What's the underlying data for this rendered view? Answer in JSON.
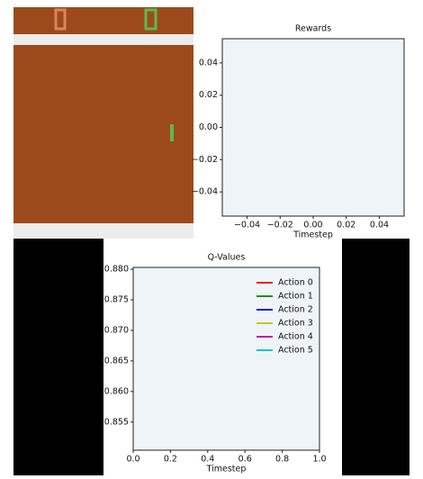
{
  "chart_data": [
    {
      "type": "line",
      "title": "Rewards",
      "x_label": "Timestep",
      "x": [],
      "values": [],
      "color": "#1f77b4",
      "xlim": [
        -0.055,
        0.055
      ],
      "xticks": [
        {
          "value": -0.04,
          "label": "−0.04"
        },
        {
          "value": -0.02,
          "label": "−0.02"
        },
        {
          "value": 0,
          "label": "0.00"
        },
        0.02,
        0.04
      ],
      "ylim": [
        -0.055,
        0.055
      ],
      "yticks": [
        {
          "value": -0.04,
          "label": "−0.04"
        },
        {
          "value": -0.02,
          "label": "−0.02"
        },
        {
          "value": 0,
          "label": "0.00"
        },
        0.02,
        0.04
      ]
    },
    {
      "type": "line",
      "title": "Q-Values",
      "x_label": "Timestep",
      "x": [],
      "series": [
        {
          "name": "Action 0",
          "color": "#e8211f",
          "values": []
        },
        {
          "name": "Action 1",
          "color": "#1f8f1f",
          "values": []
        },
        {
          "name": "Action 2",
          "color": "#1f1fd8",
          "values": []
        },
        {
          "name": "Action 3",
          "color": "#c8c81a",
          "values": []
        },
        {
          "name": "Action 4",
          "color": "#b41fb4",
          "values": []
        },
        {
          "name": "Action 5",
          "color": "#1fc0c8",
          "values": []
        }
      ],
      "legend": "upper right",
      "xlim": [
        0,
        1
      ],
      "xticks": [
        {
          "value": 0,
          "label": "0.0"
        },
        0.2,
        0.4,
        0.6,
        0.8,
        {
          "value": 1,
          "label": "1.0"
        }
      ],
      "ylim": [
        0.8504,
        0.8803
      ],
      "yticks": [
        0.855,
        {
          "value": 0.86,
          "label": "0.860"
        },
        0.865,
        {
          "value": 0.87,
          "label": "0.870"
        },
        0.875,
        {
          "value": 0.88,
          "label": "0.880"
        }
      ]
    }
  ]
}
